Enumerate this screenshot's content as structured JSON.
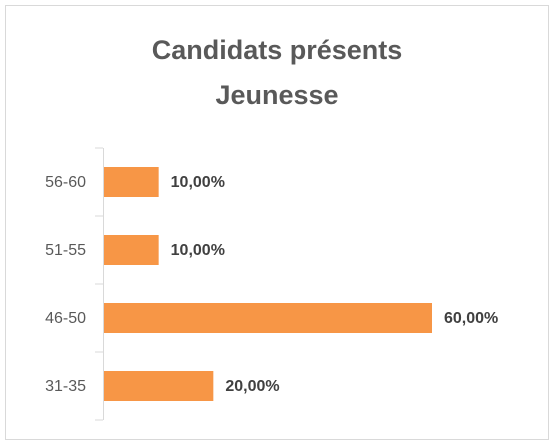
{
  "chart_data": {
    "type": "bar",
    "orientation": "horizontal",
    "title": [
      "Candidats présents",
      "Jeunesse"
    ],
    "categories": [
      "56-60",
      "51-55",
      "46-50",
      "31-35"
    ],
    "values": [
      10,
      10,
      60,
      20
    ],
    "value_labels": [
      "10,00%",
      "10,00%",
      "60,00%",
      "20,00%"
    ],
    "color": "#f79646"
  }
}
